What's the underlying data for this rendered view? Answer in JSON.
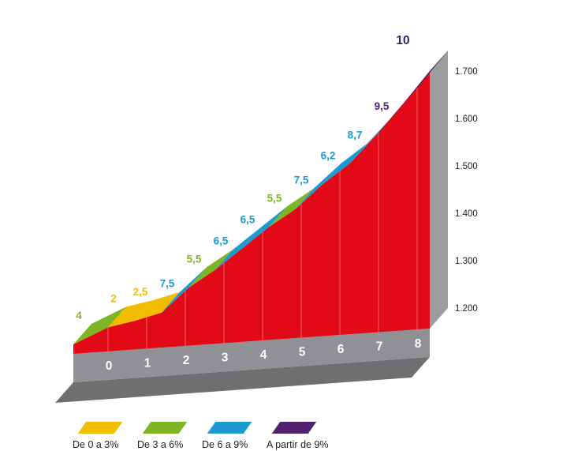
{
  "chart_data": {
    "type": "area",
    "description": "3D mountain climb gradient profile",
    "lead_in": {
      "label": "4",
      "grade": 4
    },
    "segments": [
      {
        "label": "2",
        "grade": 2
      },
      {
        "label": "2,5",
        "grade": 2.5
      },
      {
        "label": "7,5",
        "grade": 7.5
      },
      {
        "label": "5,5",
        "grade": 5.5
      },
      {
        "label": "6,5",
        "grade": 6.5
      },
      {
        "label": "6,5",
        "grade": 6.5
      },
      {
        "label": "5,5",
        "grade": 5.5
      },
      {
        "label": "7,5",
        "grade": 7.5
      },
      {
        "label": "6,2",
        "grade": 6.2
      },
      {
        "label": "8,7",
        "grade": 8.7
      },
      {
        "label": "9,5",
        "grade": 9.5
      },
      {
        "label": "10",
        "grade": 10
      }
    ],
    "x_axis_ticks": [
      "0",
      "1",
      "2",
      "3",
      "4",
      "5",
      "6",
      "7",
      "8"
    ],
    "y_axis_ticks": [
      "1.700",
      "1.600",
      "1.500",
      "1.400",
      "1.300",
      "1.200"
    ],
    "legend": [
      {
        "label": "De 0 a 3%",
        "color": "#f2bd00"
      },
      {
        "label": "De 3 a 6%",
        "color": "#7db622"
      },
      {
        "label": "De 6 a 9%",
        "color": "#1b9ad2"
      },
      {
        "label": "A partir de 9%",
        "color": "#50216f"
      }
    ],
    "colors": {
      "mountain": "#e20a16",
      "road": "#8f9194",
      "road_shadow": "#6d6f71",
      "wall": "#9b9da0",
      "summit_label": "#28276a",
      "axis_text": "#1d1d1b",
      "km_text": "#ffffff"
    }
  }
}
